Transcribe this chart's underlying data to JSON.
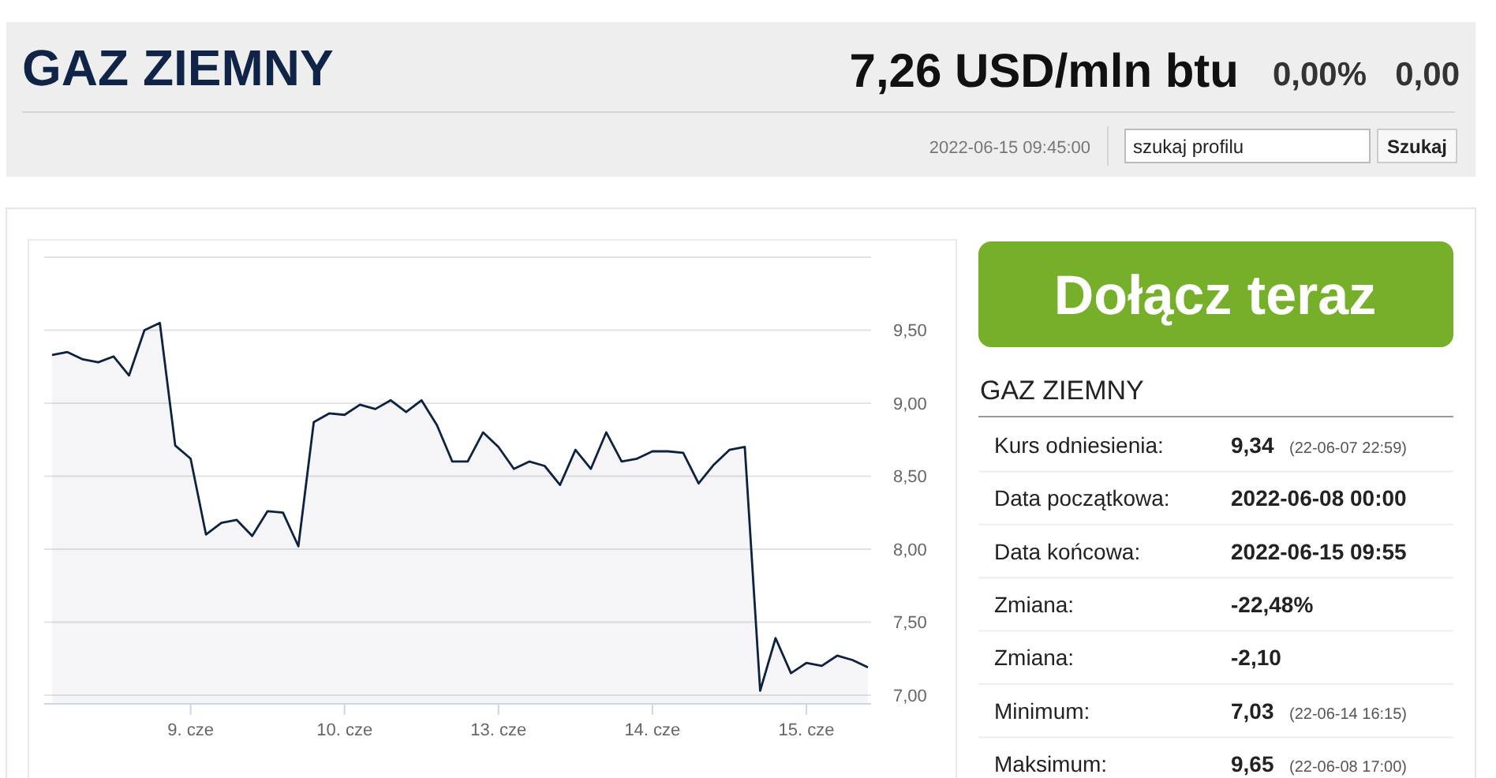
{
  "chart_data": [
    {
      "type": "area",
      "title": "GAZ ZIEMNY",
      "annotations": [
        "7,26 USD/mln btu",
        "0,00%",
        "0,00",
        "2022-06-15 09:45:00",
        "szukaj profilu",
        "Szukaj"
      ],
      "categories": [
        null,
        null,
        null,
        null,
        null,
        null,
        null,
        null,
        null,
        "9. cze",
        null,
        null,
        null,
        null,
        null,
        null,
        null,
        null,
        null,
        "10. cze",
        null,
        null,
        null,
        null,
        null,
        null,
        null,
        null,
        null,
        "13. cze",
        null,
        null,
        null,
        null,
        null,
        null,
        null,
        null,
        null,
        "14. cze",
        null,
        null,
        null,
        null,
        null,
        null,
        null,
        null,
        null,
        "15. cze",
        null,
        null,
        null,
        null
      ],
      "series": [
        {
          "color": "#0d2240",
          "values": [
            9.33,
            9.35,
            9.3,
            9.28,
            9.32,
            9.19,
            9.5,
            9.55,
            8.71,
            8.62,
            8.1,
            8.18,
            8.2,
            8.09,
            8.26,
            8.25,
            8.02,
            8.87,
            8.93,
            8.92,
            8.99,
            8.96,
            9.02,
            8.94,
            9.02,
            8.85,
            8.6,
            8.6,
            8.8,
            8.7,
            8.55,
            8.6,
            8.57,
            8.44,
            8.68,
            8.55,
            8.8,
            8.6,
            8.62,
            8.67,
            8.67,
            8.66,
            8.45,
            8.58,
            8.68,
            8.7,
            7.03,
            7.39,
            7.15,
            7.22,
            7.2,
            7.27,
            7.24,
            7.19
          ]
        }
      ],
      "ylim": [
        6.94,
        10.0
      ],
      "yticks": [
        {
          "value": 7,
          "label": "7,00"
        },
        {
          "value": 7.5,
          "label": "7,50"
        },
        {
          "value": 8,
          "label": "8,00"
        },
        {
          "value": 8.5,
          "label": "8,50"
        },
        {
          "value": 9,
          "label": "9,00"
        },
        {
          "value": 9.5,
          "label": "9,50"
        },
        {
          "value": 10,
          "label": null
        }
      ],
      "grid": "y"
    },
    {
      "type": "other",
      "title": "GAZ ZIEMNY",
      "annotations": [
        "Dołącz teraz"
      ],
      "y_categories": [
        "Kurs odniesienia:",
        "Data początkowa:",
        "Data końcowa:",
        "Zmiana:",
        "Zmiana:",
        "Minimum:",
        "Maksimum:"
      ],
      "cell_labels": [
        [
          "9,34",
          "(22-06-07 22:59)"
        ],
        [
          "2022-06-08 00:00",
          null
        ],
        [
          "2022-06-15 09:55",
          null
        ],
        [
          "-22,48%",
          null
        ],
        [
          "-2,10",
          null
        ],
        [
          "7,03",
          "(22-06-14 16:15)"
        ],
        [
          "9,65",
          "(22-06-08 17:00)"
        ]
      ]
    }
  ]
}
